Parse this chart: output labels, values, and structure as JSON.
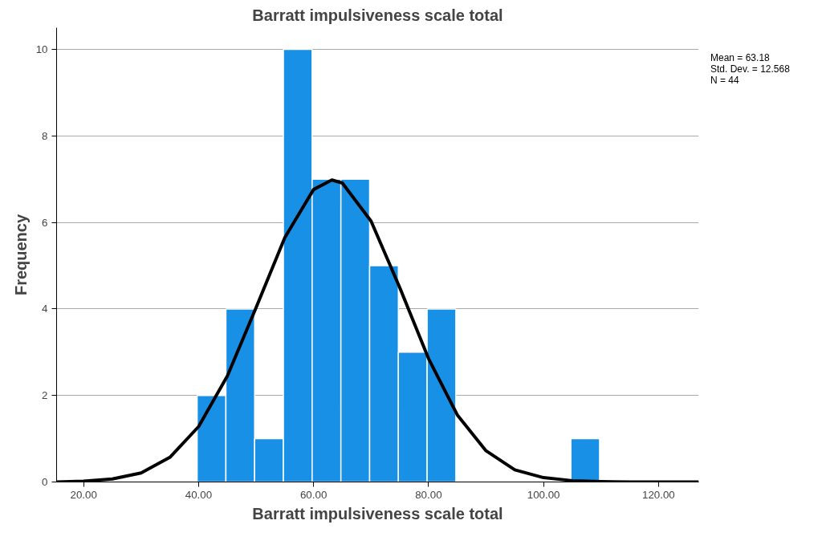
{
  "chart_data": [
    {
      "type": "histogram",
      "title": "Barratt impulsiveness scale total",
      "xlabel": "Barratt impulsiveness scale total",
      "ylabel": "Frequency",
      "bins": [
        39.75,
        44.75,
        49.75,
        54.75,
        59.75,
        64.75,
        69.75,
        74.75,
        79.75,
        84.75,
        89.75,
        94.75,
        99.75,
        104.75,
        109.75
      ],
      "values": [
        2,
        4,
        1,
        10,
        7,
        7,
        5,
        3,
        4,
        0,
        0,
        0,
        0,
        1
      ],
      "color": "#1890e6",
      "series": [
        {
          "type": "line",
          "color": "#000000",
          "x": [
            15.3,
            20,
            25,
            30,
            35,
            40,
            45,
            50,
            55,
            60,
            63.18,
            65,
            70,
            75,
            80,
            85,
            90,
            95,
            100,
            105,
            110,
            115,
            120,
            127
          ],
          "values": [
            0.0,
            0.02,
            0.07,
            0.21,
            0.57,
            1.28,
            2.45,
            4.03,
            5.65,
            6.76,
            6.98,
            6.91,
            6.03,
            4.49,
            2.85,
            1.55,
            0.72,
            0.28,
            0.1,
            0.03,
            0.01,
            0.0,
            0.0,
            0.0
          ]
        }
      ],
      "xlim": [
        15.3,
        127
      ],
      "ylim": [
        0,
        10.5
      ],
      "xticks": [
        {
          "value": 20,
          "label": "20.00"
        },
        {
          "value": 40,
          "label": "40.00"
        },
        {
          "value": 60,
          "label": "60.00"
        },
        {
          "value": 80,
          "label": "80.00"
        },
        {
          "value": 100,
          "label": "100.00"
        },
        {
          "value": 120,
          "label": "120.00"
        }
      ],
      "yticks": [
        0,
        2,
        4,
        6,
        8,
        10
      ],
      "grid": "y",
      "annotations": [
        "Mean = 63.18",
        "Std. Dev. = 12.568",
        "N = 44"
      ]
    }
  ]
}
